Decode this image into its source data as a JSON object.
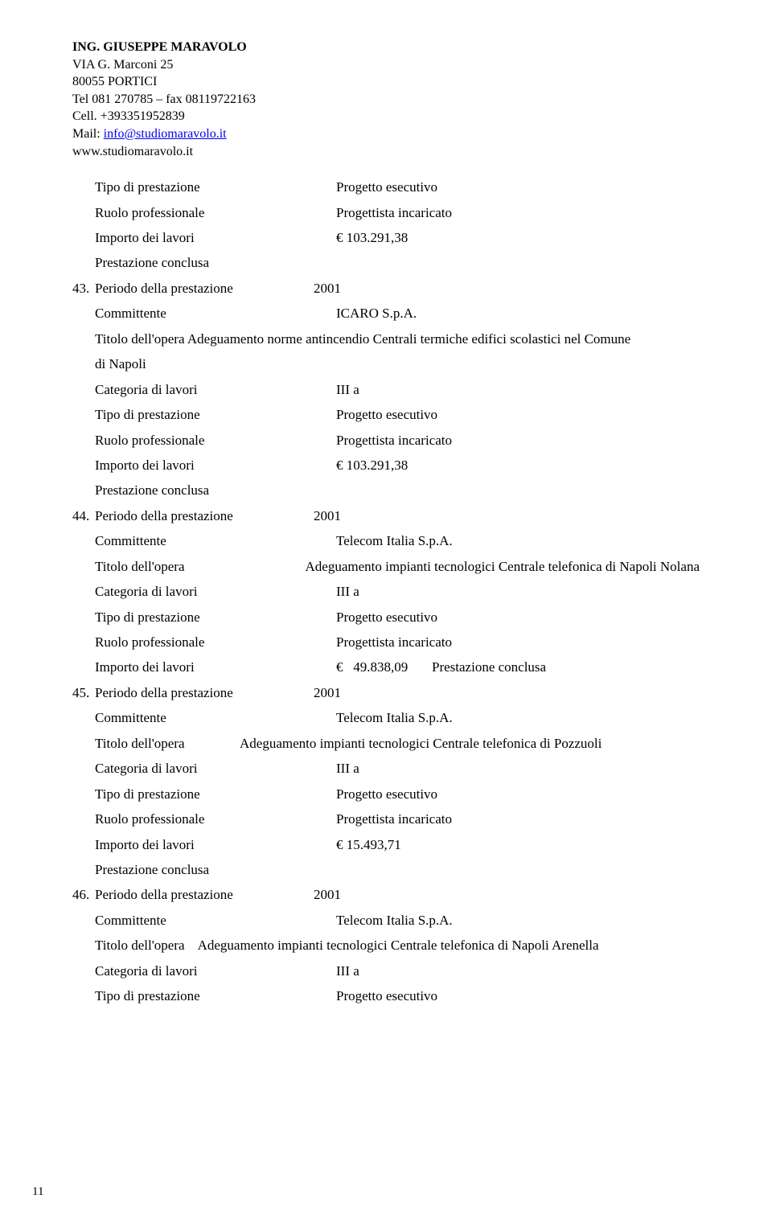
{
  "header": {
    "name": "ING. GIUSEPPE MARAVOLO",
    "address1": "VIA G. Marconi 25",
    "address2": "80055 PORTICI",
    "tel": "Tel 081 270785 – fax 08119722163",
    "cell": "Cell. +393351952839",
    "mail_label": "Mail: ",
    "mail_link": "info@studiomaravolo.it",
    "web": "www.studiomaravolo.it"
  },
  "labels": {
    "tipo": "Tipo di prestazione",
    "ruolo": "Ruolo professionale",
    "importo": "Importo dei lavori",
    "prestazione_conclusa": "Prestazione conclusa",
    "periodo": "Periodo della prestazione",
    "committente": "Committente",
    "categoria": "Categoria di lavori",
    "titolo": "Titolo dell'opera"
  },
  "entry42_tail": {
    "tipo_val": "Progetto esecutivo",
    "ruolo_val": "Progettista incaricato",
    "importo_val": "€  103.291,38"
  },
  "entry43": {
    "num": "43.",
    "periodo_val": "2001",
    "committente_val": "ICARO S.p.A.",
    "titolo_inline": "Titolo dell'opera  Adeguamento norme antincendio Centrali termiche edifici scolastici nel Comune",
    "titolo_line2": "di Napoli",
    "categoria_val": "III a",
    "tipo_val": "Progetto esecutivo",
    "ruolo_val": "Progettista incaricato",
    "importo_val": "€  103.291,38"
  },
  "entry44": {
    "num": "44.",
    "periodo_val": "2001",
    "committente_val": "Telecom Italia S.p.A.",
    "titolo_val": "Adeguamento impianti tecnologici Centrale telefonica di Napoli Nolana",
    "categoria_val": "III a",
    "tipo_val": "Progetto esecutivo",
    "ruolo_val": "Progettista incaricato",
    "importo_val": "€   49.838,09       Prestazione conclusa"
  },
  "entry45": {
    "num": "45.",
    "periodo_val": "2001",
    "committente_val": "Telecom Italia S.p.A.",
    "titolo_val": "Adeguamento impianti tecnologici Centrale telefonica di Pozzuoli",
    "categoria_val": "III a",
    "tipo_val": "Progetto esecutivo",
    "ruolo_val": "Progettista incaricato",
    "importo_val": "€   15.493,71"
  },
  "entry46": {
    "num": "46.",
    "periodo_val": "2001",
    "committente_val": "Telecom Italia S.p.A.",
    "titolo_inline": "Titolo dell'opera    Adeguamento impianti tecnologici Centrale telefonica di Napoli Arenella",
    "categoria_val": "III a",
    "tipo_val": "Progetto esecutivo"
  },
  "page_number": "11"
}
